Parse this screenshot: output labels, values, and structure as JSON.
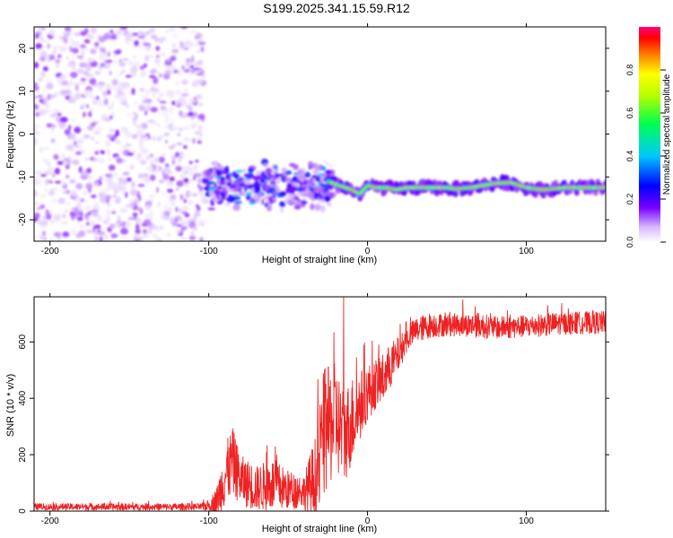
{
  "title": "S199.2025.341.15.59.R12",
  "chart_data": [
    {
      "type": "heatmap",
      "xlabel": "Height of straight line (km)",
      "ylabel": "Frequency (Hz)",
      "xlim": [
        -210,
        150
      ],
      "ylim": [
        -25,
        25
      ],
      "xticks": [
        -200,
        -100,
        0,
        100
      ],
      "yticks": [
        -20,
        -10,
        0,
        10,
        20
      ],
      "colorbar": {
        "label": "Normalized spectral amplitude",
        "range": [
          0,
          1
        ],
        "ticks": [
          "0.0",
          "0.2",
          "0.4",
          "0.6",
          "0.8"
        ],
        "tick_values": [
          0,
          0.2,
          0.4,
          0.6,
          0.8
        ]
      },
      "noise_region": {
        "x_range": [
          -210,
          -103
        ],
        "freq_range": [
          -25,
          25
        ],
        "amplitude": [
          0.02,
          0.15
        ]
      },
      "scatter_region": {
        "x_range": [
          -103,
          -22
        ],
        "freq_range": [
          -20,
          -6
        ],
        "amplitude": [
          0.05,
          0.3
        ]
      },
      "signal_ridge": {
        "x": [
          -25,
          -18,
          -10,
          -5,
          0,
          5,
          12,
          18,
          25,
          40,
          50,
          55,
          65,
          80,
          90,
          100,
          110,
          125,
          150
        ],
        "frequency": [
          -11,
          -12,
          -13,
          -14,
          -12,
          -12.5,
          -12.5,
          -13,
          -12.5,
          -12.5,
          -12.5,
          -12.8,
          -12.5,
          -11.5,
          -11.3,
          -12.5,
          -13,
          -12.5,
          -12.5
        ],
        "peak_amplitude": 0.8
      }
    },
    {
      "type": "line",
      "xlabel": "Height of straight line (km)",
      "ylabel": "SNR (10 * v/v)",
      "xlim": [
        -210,
        150
      ],
      "ylim": [
        0,
        760
      ],
      "xticks": [
        -200,
        -100,
        0,
        100
      ],
      "yticks": [
        0,
        200,
        400,
        600
      ],
      "color": "#ee2222",
      "envelope": {
        "x": [
          -210,
          -105,
          -100,
          -95,
          -90,
          -85,
          -80,
          -70,
          -60,
          -50,
          -40,
          -32,
          -28,
          -20,
          -15,
          -10,
          -5,
          0,
          5,
          10,
          15,
          20,
          25,
          30,
          40,
          50,
          60,
          70,
          80,
          100,
          120,
          150
        ],
        "center": [
          15,
          15,
          20,
          35,
          120,
          180,
          110,
          80,
          95,
          75,
          70,
          115,
          270,
          330,
          260,
          320,
          370,
          420,
          450,
          470,
          520,
          560,
          610,
          640,
          660,
          660,
          660,
          660,
          650,
          655,
          665,
          670
        ],
        "amplitude": [
          12,
          12,
          20,
          50,
          110,
          120,
          90,
          80,
          95,
          70,
          60,
          170,
          230,
          200,
          170,
          160,
          130,
          100,
          90,
          90,
          80,
          60,
          45,
          45,
          45,
          40,
          40,
          45,
          40,
          40,
          40,
          40
        ]
      },
      "peak_markers": [
        {
          "x": -15,
          "y": 760
        },
        {
          "x": 60,
          "y": 750
        }
      ]
    }
  ]
}
